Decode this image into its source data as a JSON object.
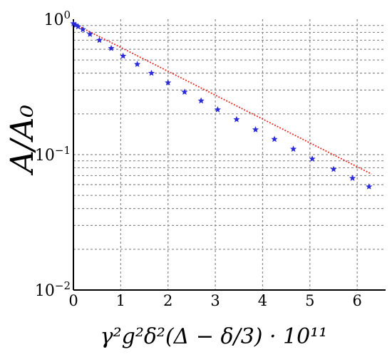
{
  "chart_data": {
    "type": "scatter",
    "title": "",
    "xlabel": "γ²g²δ²(Δ − δ/3) · 10¹¹",
    "ylabel": "A/A₀",
    "xlim": [
      0,
      6.6
    ],
    "ylim": [
      0.01,
      1
    ],
    "y_scale": "log",
    "grid": true,
    "x_ticks": [
      "0",
      "1",
      "2",
      "3",
      "4",
      "5",
      "6"
    ],
    "y_ticks": [
      {
        "value": 1,
        "mantissa": "10",
        "exponent": "0"
      },
      {
        "value": 0.1,
        "mantissa": "10",
        "exponent": "−1"
      },
      {
        "value": 0.01,
        "mantissa": "10",
        "exponent": "−2"
      }
    ],
    "series": [
      {
        "marker": "star",
        "color": "#2b2bd9",
        "x": [
          0,
          0.05,
          0.1,
          0.2,
          0.35,
          0.55,
          0.8,
          1.05,
          1.35,
          1.65,
          2.0,
          2.35,
          2.7,
          3.05,
          3.45,
          3.85,
          4.25,
          4.65,
          5.05,
          5.5,
          5.9,
          6.25
        ],
        "y": [
          0.93,
          0.905,
          0.882,
          0.84,
          0.775,
          0.7,
          0.61,
          0.535,
          0.465,
          0.4,
          0.34,
          0.29,
          0.25,
          0.215,
          0.182,
          0.153,
          0.13,
          0.11,
          0.093,
          0.078,
          0.067,
          0.058
        ]
      },
      {
        "line_style": "dotted",
        "color": "#e8302a",
        "x": [
          0,
          6.3
        ],
        "y": [
          0.93,
          0.072
        ]
      }
    ]
  }
}
